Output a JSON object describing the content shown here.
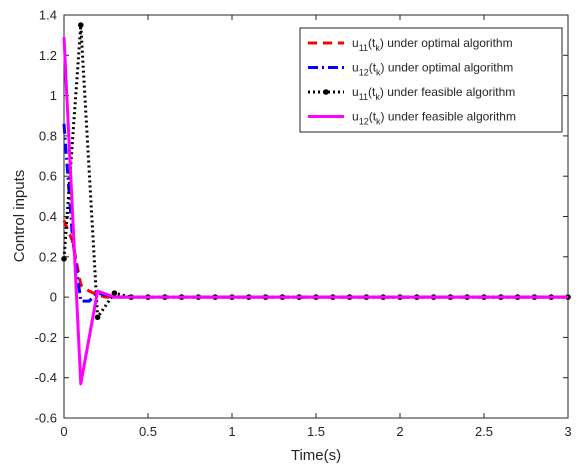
{
  "chart_data": {
    "type": "line",
    "title": "",
    "xlabel": "Time(s)",
    "ylabel": "Control inputs",
    "xlim": [
      0,
      3
    ],
    "ylim": [
      -0.6,
      1.4
    ],
    "xticks": [
      0,
      0.5,
      1,
      1.5,
      2,
      2.5,
      3
    ],
    "xtick_labels": [
      "0",
      "0.5",
      "1",
      "1.5",
      "2",
      "2.5",
      "3"
    ],
    "yticks": [
      -0.6,
      -0.4,
      -0.2,
      0,
      0.2,
      0.4,
      0.6,
      0.8,
      1,
      1.2,
      1.4
    ],
    "ytick_labels": [
      "-0.6",
      "-0.4",
      "-0.2",
      "0",
      "0.2",
      "0.4",
      "0.6",
      "0.8",
      "1",
      "1.2",
      "1.4"
    ],
    "grid": false,
    "legend_position": "top-right",
    "series": [
      {
        "name": "u11(tk) under optimal algorithm",
        "legend": {
          "base": "u",
          "sub1": "11",
          "mid": "(t",
          "sub2": "k",
          "rest": ") under optimal algorithm"
        },
        "color": "#ff0000",
        "style": "dashed",
        "marker": "none",
        "x": [
          0,
          0.05,
          0.1,
          0.15,
          0.2,
          0.25,
          0.3,
          0.35,
          0.4,
          0.5,
          1,
          1.5,
          2,
          2.5,
          3
        ],
        "y": [
          0.38,
          0.28,
          0.06,
          0.03,
          0.01,
          0.0,
          0.0,
          0.0,
          0.0,
          0.0,
          0.0,
          0.0,
          0.0,
          0.0,
          0.0
        ]
      },
      {
        "name": "u12(tk) under optimal algorithm",
        "legend": {
          "base": "u",
          "sub1": "12",
          "mid": "(t",
          "sub2": "k",
          "rest": ") under optimal algorithm"
        },
        "color": "#0000ff",
        "style": "dashdot",
        "marker": "none",
        "x": [
          0,
          0.05,
          0.1,
          0.15,
          0.2,
          0.25,
          0.3,
          0.35,
          0.4,
          0.5,
          1,
          1.5,
          2,
          2.5,
          3
        ],
        "y": [
          0.86,
          0.3,
          -0.02,
          -0.02,
          0.02,
          0.01,
          0.0,
          0.0,
          0.0,
          0.0,
          0.0,
          0.0,
          0.0,
          0.0,
          0.0
        ]
      },
      {
        "name": "u11(tk) under feasible algorithm",
        "legend": {
          "base": "u",
          "sub1": "11",
          "mid": "(t",
          "sub2": "k",
          "rest": ") under feasible algorithm"
        },
        "color": "#000000",
        "style": "dotted",
        "marker": "circle",
        "x": [
          0,
          0.1,
          0.2,
          0.3,
          0.4,
          0.5,
          0.6,
          0.7,
          0.8,
          0.9,
          1.0,
          1.1,
          1.2,
          1.3,
          1.4,
          1.5,
          1.6,
          1.7,
          1.8,
          1.9,
          2.0,
          2.1,
          2.2,
          2.3,
          2.4,
          2.5,
          2.6,
          2.7,
          2.8,
          2.9,
          3.0
        ],
        "y": [
          0.19,
          1.35,
          -0.1,
          0.02,
          0,
          0,
          0,
          0,
          0,
          0,
          0,
          0,
          0,
          0,
          0,
          0,
          0,
          0,
          0,
          0,
          0,
          0,
          0,
          0,
          0,
          0,
          0,
          0,
          0,
          0,
          0
        ]
      },
      {
        "name": "u12(tk) under feasible algorithm",
        "legend": {
          "base": "u",
          "sub1": "12",
          "mid": "(t",
          "sub2": "k",
          "rest": ") under feasible algorithm"
        },
        "color": "#ff00ff",
        "style": "solid",
        "marker": "none",
        "x": [
          0,
          0.1,
          0.2,
          0.3,
          0.4,
          0.5,
          1,
          1.5,
          2,
          2.5,
          3
        ],
        "y": [
          1.29,
          -0.43,
          0.03,
          0.0,
          0.0,
          0.0,
          0.0,
          0.0,
          0.0,
          0.0,
          0.0
        ]
      }
    ]
  }
}
